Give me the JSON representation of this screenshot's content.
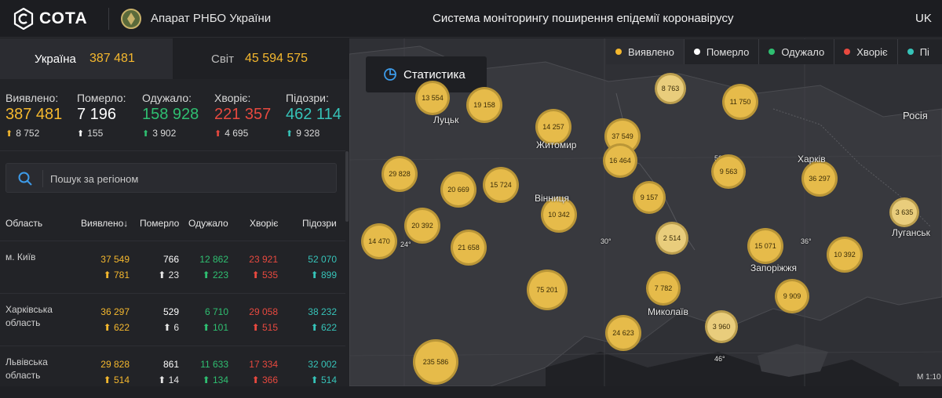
{
  "header": {
    "brand": "СОТА",
    "org_name": "Апарат РНБО України",
    "system_title": "Система моніторингу поширення епідемії коронавірусу",
    "lang": "UK"
  },
  "tabs": {
    "ukraine_label": "Україна",
    "ukraine_value": "387 481",
    "world_label": "Світ",
    "world_value": "45 594 575"
  },
  "summary": [
    {
      "label": "Виявлено:",
      "value": "387 481",
      "delta": "8 752",
      "color": "#f5b82e"
    },
    {
      "label": "Померло:",
      "value": "7 196",
      "delta": "155",
      "color": "#ffffff"
    },
    {
      "label": "Одужало:",
      "value": "158 928",
      "delta": "3 902",
      "color": "#2fbf71"
    },
    {
      "label": "Хворіє:",
      "value": "221 357",
      "delta": "4 695",
      "color": "#e8493f"
    },
    {
      "label": "Підозри:",
      "value": "462 114",
      "delta": "9 328",
      "color": "#36c3b8"
    }
  ],
  "search": {
    "placeholder": "Пошук за регіоном"
  },
  "table": {
    "headers": {
      "region": "Область",
      "detected": "Виявлено",
      "sort_arrow": "↓",
      "died": "Померло",
      "recovered": "Одужало",
      "sick": "Хворіє",
      "suspect": "Підозри"
    },
    "rows": [
      {
        "name": "м. Київ",
        "detected": "37 549",
        "detected_d": "781",
        "died": "766",
        "died_d": "23",
        "recovered": "12 862",
        "recovered_d": "223",
        "sick": "23 921",
        "sick_d": "535",
        "suspect": "52 070",
        "suspect_d": "899"
      },
      {
        "name": "Харківська область",
        "detected": "36 297",
        "detected_d": "622",
        "died": "529",
        "died_d": "6",
        "recovered": "6 710",
        "recovered_d": "101",
        "sick": "29 058",
        "sick_d": "515",
        "suspect": "38 232",
        "suspect_d": "622"
      },
      {
        "name": "Львівська область",
        "detected": "29 828",
        "detected_d": "514",
        "died": "861",
        "died_d": "14",
        "recovered": "11 633",
        "recovered_d": "134",
        "sick": "17 334",
        "sick_d": "366",
        "suspect": "32 002",
        "suspect_d": "514"
      }
    ]
  },
  "map": {
    "stat_button": "Статистика",
    "legend": [
      {
        "label": "Виявлено",
        "color": "#f5b82e"
      },
      {
        "label": "Померло",
        "color": "#ffffff"
      },
      {
        "label": "Одужало",
        "color": "#2fbf71"
      },
      {
        "label": "Хворіє",
        "color": "#e8493f"
      },
      {
        "label": "Пі",
        "color": "#36c3b8"
      }
    ],
    "bubbles": [
      "13 554",
      "19 158",
      "8 763",
      "11 750",
      "14 257",
      "37 549",
      "16 464",
      "29 828",
      "20 669",
      "15 724",
      "9 563",
      "36 297",
      "9 157",
      "10 342",
      "3 635",
      "20 392",
      "21 658",
      "14 470",
      "2 514",
      "15 071",
      "10 392",
      "75 201",
      "7 782",
      "9 909",
      "3 960",
      "24 623",
      "235 586"
    ],
    "cities": [
      "Луцьк",
      "Житомир",
      "Вінниця",
      "Харків",
      "Росія",
      "Луганськ",
      "Запоріжжя",
      "Миколаїв"
    ],
    "grid_labels": [
      "24°",
      "30°",
      "36°",
      "50°",
      "46°"
    ],
    "scale": "М 1:10"
  }
}
